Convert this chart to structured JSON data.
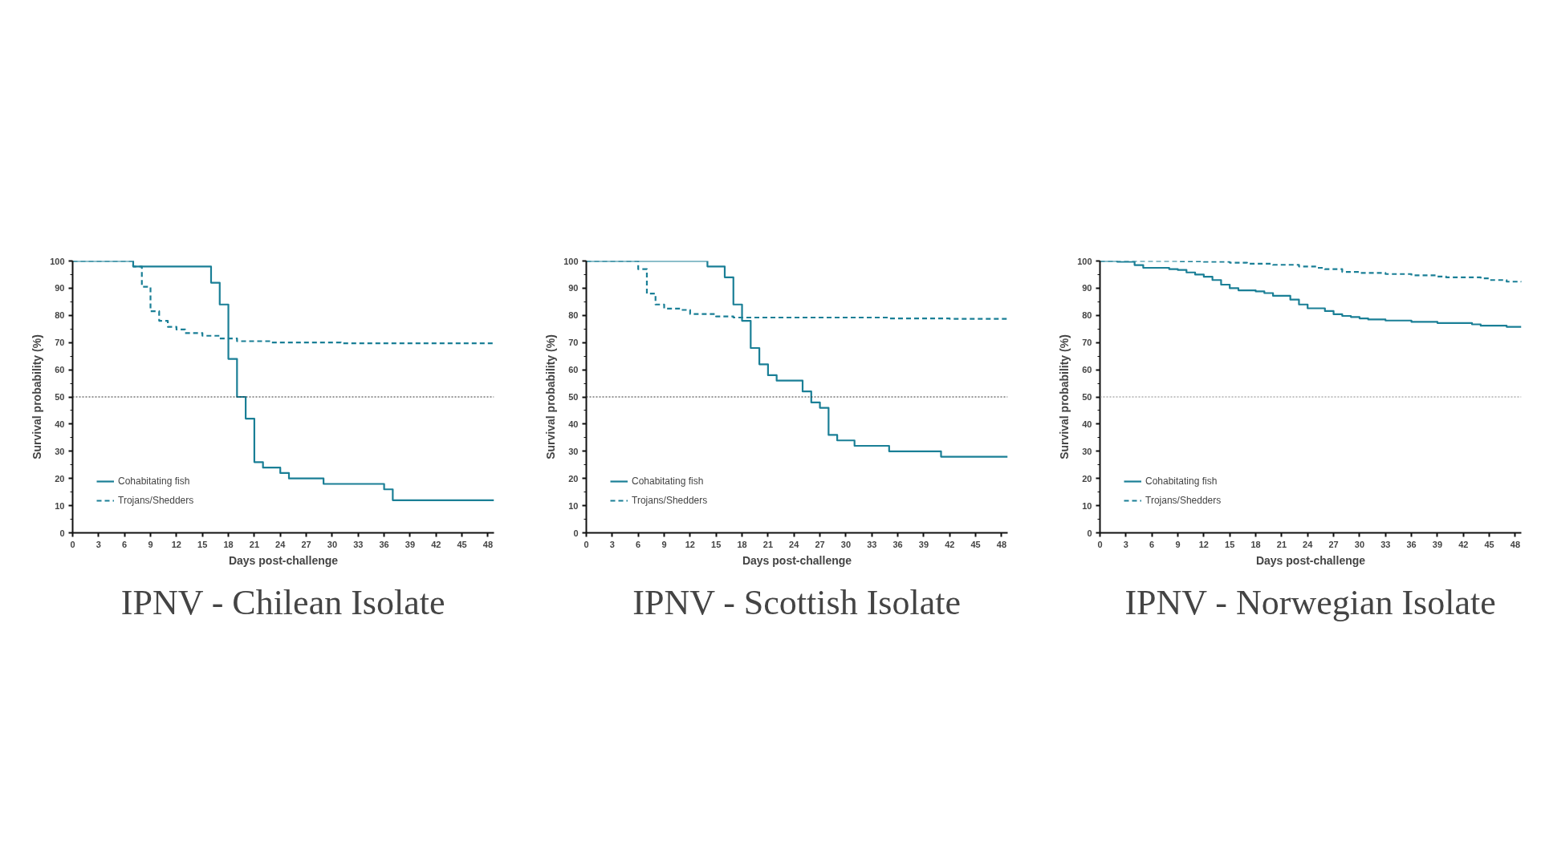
{
  "chart_data": [
    {
      "type": "step",
      "title": "IPNV - Chilean Isolate",
      "xlabel": "Days post-challenge",
      "ylabel": "Survival probability (%)",
      "xlim": [
        0,
        48.7
      ],
      "ylim": [
        0,
        100
      ],
      "xticks": [
        0,
        3,
        6,
        9,
        12,
        15,
        18,
        21,
        24,
        27,
        30,
        33,
        36,
        39,
        42,
        45,
        48
      ],
      "yticks": [
        0,
        10,
        20,
        30,
        40,
        50,
        60,
        70,
        80,
        90,
        100
      ],
      "grid": false,
      "legend": "bottom left",
      "ref_lines": [
        {
          "axis": "y",
          "value": 50,
          "line_style": "dotted",
          "color": "#333333"
        }
      ],
      "series": [
        {
          "name": "Cohabitating fish",
          "color": "#1a7f96",
          "line_style": "solid",
          "x": [
            0,
            7,
            16,
            17,
            18,
            19,
            20,
            21,
            22,
            24,
            25,
            29,
            36,
            37,
            48.7
          ],
          "values": [
            100,
            98,
            92,
            84,
            64,
            50,
            42,
            26,
            24,
            22,
            20,
            18,
            16,
            12,
            12
          ]
        },
        {
          "name": "Trojans/Shedders",
          "color": "#1a7f96",
          "line_style": "dashed",
          "x": [
            0,
            7,
            8,
            9,
            10,
            11,
            12,
            13,
            15,
            17,
            19,
            23,
            31,
            48.7
          ],
          "values": [
            100,
            98,
            90.5,
            81.5,
            78,
            75.8,
            74.8,
            73.5,
            72.5,
            71.5,
            70.5,
            70,
            69.7,
            69.7
          ]
        }
      ]
    },
    {
      "type": "step",
      "title": "IPNV - Scottish Isolate",
      "xlabel": "Days post-challenge",
      "ylabel": "Survival probability (%)",
      "xlim": [
        0,
        48.7
      ],
      "ylim": [
        0,
        100
      ],
      "xticks": [
        0,
        3,
        6,
        9,
        12,
        15,
        18,
        21,
        24,
        27,
        30,
        33,
        36,
        39,
        42,
        45,
        48
      ],
      "yticks": [
        0,
        10,
        20,
        30,
        40,
        50,
        60,
        70,
        80,
        90,
        100
      ],
      "grid": false,
      "legend": "bottom left",
      "ref_lines": [
        {
          "axis": "y",
          "value": 50,
          "line_style": "dotted",
          "color": "#333333"
        }
      ],
      "series": [
        {
          "name": "Cohabitating fish",
          "color": "#1a7f96",
          "line_style": "solid",
          "x": [
            0,
            14,
            16,
            17,
            18,
            19,
            20,
            21,
            22,
            25,
            26,
            27,
            28,
            29,
            31,
            35,
            41,
            48.7
          ],
          "values": [
            100,
            98,
            94,
            84,
            78,
            68,
            62,
            58,
            56,
            52,
            48,
            46,
            36,
            34,
            32,
            30,
            28,
            28
          ]
        },
        {
          "name": "Trojans/Shedders",
          "color": "#1a7f96",
          "line_style": "dashed",
          "x": [
            0,
            6,
            7,
            8,
            9,
            11,
            12,
            15,
            17,
            35,
            42,
            48.7
          ],
          "values": [
            100,
            97,
            88,
            84,
            82.5,
            82,
            80.5,
            79.6,
            79.2,
            78.9,
            78.7,
            78.7
          ]
        }
      ]
    },
    {
      "type": "step",
      "title": "IPNV - Norwegian Isolate",
      "xlabel": "Days post-challenge",
      "ylabel": "Survival probability (%)",
      "xlim": [
        0,
        48.7
      ],
      "ylim": [
        0,
        100
      ],
      "xticks": [
        0,
        3,
        6,
        9,
        12,
        15,
        18,
        21,
        24,
        27,
        30,
        33,
        36,
        39,
        42,
        45,
        48
      ],
      "yticks": [
        0,
        10,
        20,
        30,
        40,
        50,
        60,
        70,
        80,
        90,
        100
      ],
      "grid": false,
      "legend": "bottom left",
      "ref_lines": [
        {
          "axis": "y",
          "value": 50,
          "line_style": "dotted",
          "color": "#888888"
        }
      ],
      "series": [
        {
          "name": "Cohabitating fish",
          "color": "#1a7f96",
          "line_style": "solid",
          "x": [
            0,
            2,
            4,
            5,
            8,
            9,
            10,
            11,
            12,
            13,
            14,
            15,
            16,
            18,
            19,
            20,
            22,
            23,
            24,
            26,
            27,
            28,
            29,
            30,
            31,
            33,
            36,
            39,
            43,
            44,
            47,
            48.7
          ],
          "values": [
            100,
            99.7,
            98.5,
            97.5,
            97,
            96.7,
            95.8,
            95,
            94.2,
            93,
            91.3,
            90,
            89.2,
            88.8,
            88.2,
            87.2,
            85.8,
            84,
            82.6,
            81.6,
            80.4,
            79.8,
            79.4,
            78.9,
            78.5,
            78.1,
            77.6,
            77.2,
            76.7,
            76.2,
            75.8,
            75.8
          ]
        },
        {
          "name": "Trojans/Shedders",
          "color": "#1a7f96",
          "line_style": "dashed",
          "x": [
            0,
            9,
            12,
            15,
            17,
            20,
            23,
            25,
            26,
            28,
            30,
            33,
            36,
            39,
            40,
            44,
            45,
            47,
            48.7
          ],
          "values": [
            100,
            99.9,
            99.7,
            99.4,
            99,
            98.6,
            98,
            97.5,
            97,
            96,
            95.6,
            95.2,
            94.7,
            94.3,
            94,
            93.6,
            93,
            92.4,
            92.2
          ]
        }
      ]
    }
  ]
}
